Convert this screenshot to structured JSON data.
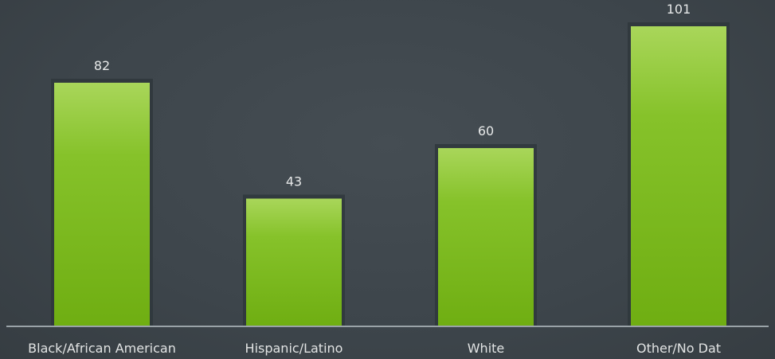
{
  "chart_data": {
    "type": "bar",
    "categories": [
      "Black/African American",
      "Hispanic/Latino",
      "White",
      "Other/No Dat"
    ],
    "values": [
      82,
      43,
      60,
      101
    ],
    "value_labels": [
      "82",
      "43",
      "60",
      "101"
    ],
    "ylim": [
      0,
      101
    ],
    "grid": false,
    "legend": "none",
    "colors": {
      "bar_top": "#a9d65a",
      "bar_mid": "#86c22a",
      "bar_bottom": "#6fae12",
      "bar_shadow": "#2f373c",
      "baseline": "#9aa3a8",
      "background": "#3e464c"
    }
  }
}
